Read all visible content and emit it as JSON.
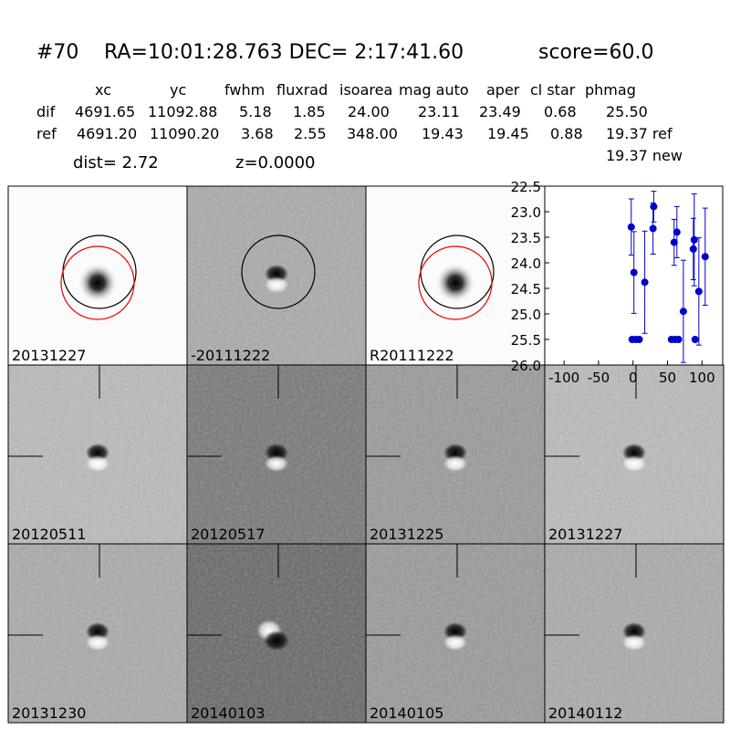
{
  "header": {
    "id": "#70",
    "coords": "RA=10:01:28.763 DEC= 2:17:41.60",
    "score": "score=60.0"
  },
  "table": {
    "columns": [
      "xc",
      "yc",
      "fwhm",
      "fluxrad",
      "isoarea",
      "mag auto",
      "aper",
      "cl star",
      "phmag"
    ],
    "rows": [
      [
        "dif",
        "4691.65",
        "11092.88",
        "5.18",
        "1.85",
        "24.00",
        "23.11",
        "23.49",
        "0.68",
        "25.50"
      ],
      [
        "ref",
        "4691.20",
        "11090.20",
        "3.68",
        "2.55",
        "348.00",
        "19.43",
        "19.45",
        "0.88",
        "19.37 ref"
      ]
    ],
    "extra": "19.37 new"
  },
  "dist": "dist=  2.72",
  "z": "z=0.0000",
  "stamps": [
    {
      "label": "20131227"
    },
    {
      "label": "-20111222"
    },
    {
      "label": "R20111222"
    },
    {
      "label": "20120511"
    },
    {
      "label": "20120517"
    },
    {
      "label": "20131225"
    },
    {
      "label": "20131227",
      "color": "#ff0000"
    },
    {
      "label": "20131230"
    },
    {
      "label": "20140103"
    },
    {
      "label": "20140105"
    },
    {
      "label": "20140112"
    }
  ],
  "chart_data": {
    "type": "scatter",
    "color": "#0000cc",
    "x": [
      -2.6,
      1.3,
      -1.3,
      4,
      9,
      17,
      29,
      30,
      55.6,
      60.9,
      66,
      59.6,
      63.6,
      73,
      87.4,
      88.7,
      90,
      95.4,
      104.6
    ],
    "values": [
      23.3,
      24.19,
      25.5,
      25.5,
      25.5,
      24.38,
      23.33,
      22.9,
      25.5,
      25.5,
      25.5,
      23.6,
      23.4,
      24.95,
      23.73,
      23.55,
      25.5,
      24.56,
      23.88
    ],
    "errors": [
      0.55,
      0.8,
      0,
      0,
      0,
      1.0,
      0.5,
      0.3,
      0,
      0,
      0,
      0.45,
      0.5,
      1.0,
      0.6,
      0.9,
      0,
      1.05,
      0.95
    ],
    "xlim": [
      -128,
      130
    ],
    "ylim": [
      26.0,
      22.5
    ],
    "xticks": [
      -100,
      -50,
      0,
      50,
      100
    ],
    "yticks": [
      22.5,
      {
        "value": 23,
        "label": "23.0"
      },
      23.5,
      {
        "value": 24,
        "label": "24.0"
      },
      24.5,
      {
        "value": 25,
        "label": "25.0"
      },
      25.5,
      {
        "value": 26,
        "label": "26.0"
      }
    ]
  }
}
